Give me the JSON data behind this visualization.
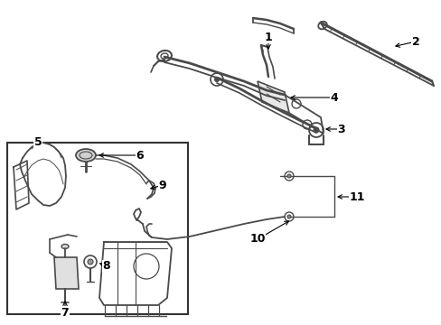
{
  "bg_color": "#ffffff",
  "line_color": "#4a4a4a",
  "fig_width": 4.89,
  "fig_height": 3.6,
  "dpi": 100
}
